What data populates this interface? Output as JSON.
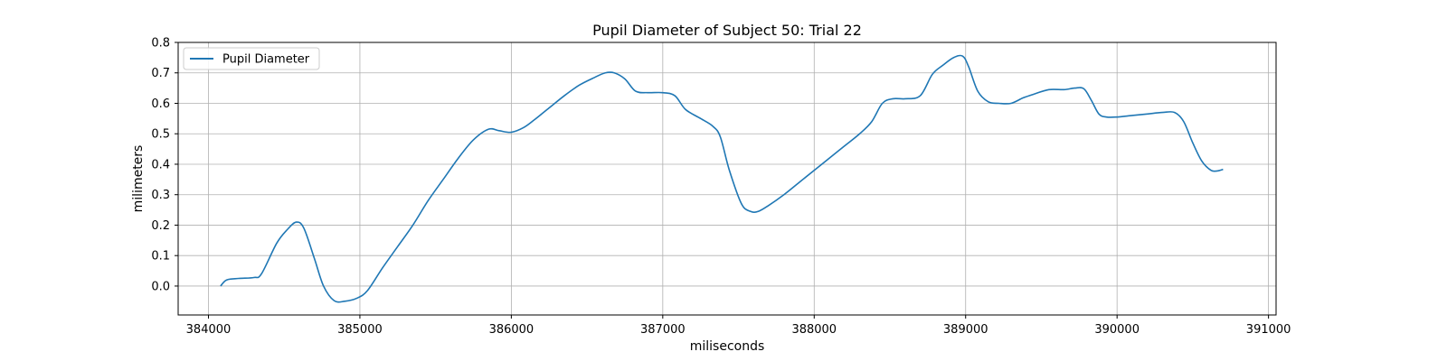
{
  "chart_data": {
    "type": "line",
    "title": "Pupil Diameter of Subject 50: Trial 22",
    "xlabel": "miliseconds",
    "ylabel": "milimeters",
    "xlim": [
      383800,
      391050
    ],
    "ylim": [
      -0.095,
      0.8
    ],
    "xticks": [
      384000,
      385000,
      386000,
      387000,
      388000,
      389000,
      390000,
      391000
    ],
    "yticks": [
      0.0,
      0.1,
      0.2,
      0.3,
      0.4,
      0.5,
      0.6,
      0.7,
      0.8
    ],
    "ytick_labels": [
      "0.0",
      "0.1",
      "0.2",
      "0.3",
      "0.4",
      "0.5",
      "0.6",
      "0.7",
      "0.8"
    ],
    "grid": true,
    "legend": {
      "position": "top-left",
      "entries": [
        "Pupil Diameter"
      ]
    },
    "series": [
      {
        "name": "Pupil Diameter",
        "color": "#1f77b4",
        "x": [
          384080,
          384120,
          384200,
          384300,
          384350,
          384450,
          384520,
          384580,
          384630,
          384700,
          384760,
          384830,
          384900,
          384980,
          385050,
          385150,
          385250,
          385350,
          385450,
          385550,
          385650,
          385750,
          385850,
          385920,
          386000,
          386080,
          386150,
          386250,
          386350,
          386450,
          386550,
          386620,
          386680,
          386750,
          386820,
          386900,
          387000,
          387080,
          387150,
          387250,
          387330,
          387380,
          387440,
          387520,
          387580,
          387630,
          387700,
          387800,
          387900,
          388000,
          388100,
          388200,
          388300,
          388380,
          388450,
          388520,
          388600,
          388700,
          388780,
          388850,
          388920,
          388980,
          389020,
          389080,
          389150,
          389220,
          389300,
          389380,
          389450,
          389550,
          389650,
          389720,
          389780,
          389830,
          389880,
          389930,
          390000,
          390100,
          390200,
          390300,
          390380,
          390440,
          390500,
          390560,
          390620,
          390660,
          390700
        ],
        "y": [
          0.0,
          0.02,
          0.025,
          0.028,
          0.04,
          0.14,
          0.185,
          0.21,
          0.19,
          0.09,
          0.0,
          -0.048,
          -0.05,
          -0.04,
          -0.015,
          0.06,
          0.13,
          0.2,
          0.28,
          0.35,
          0.42,
          0.48,
          0.515,
          0.51,
          0.505,
          0.52,
          0.545,
          0.585,
          0.625,
          0.66,
          0.685,
          0.7,
          0.7,
          0.68,
          0.64,
          0.635,
          0.635,
          0.625,
          0.58,
          0.55,
          0.525,
          0.49,
          0.38,
          0.27,
          0.245,
          0.245,
          0.265,
          0.3,
          0.34,
          0.38,
          0.42,
          0.46,
          0.5,
          0.54,
          0.6,
          0.615,
          0.615,
          0.625,
          0.695,
          0.725,
          0.75,
          0.755,
          0.72,
          0.64,
          0.605,
          0.6,
          0.6,
          0.618,
          0.63,
          0.645,
          0.645,
          0.65,
          0.648,
          0.61,
          0.565,
          0.555,
          0.555,
          0.56,
          0.565,
          0.57,
          0.57,
          0.54,
          0.47,
          0.41,
          0.38,
          0.378,
          0.383
        ]
      }
    ]
  }
}
